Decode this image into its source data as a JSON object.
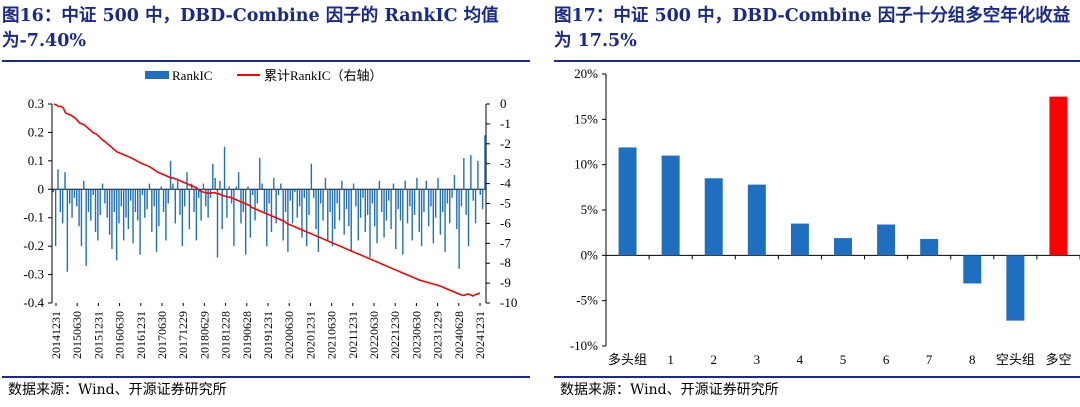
{
  "colors": {
    "title": "#1a2a8a",
    "bar_blue": "#1f6fc0",
    "line_red": "#ff0000",
    "bar_red": "#ff0000"
  },
  "left": {
    "title": "图16：中证 500 中，DBD-Combine 因子的 RankIC 均值为-7.40%",
    "source": "数据来源：Wind、开源证券研究所"
  },
  "right": {
    "title": "图17：中证 500 中，DBD-Combine 因子十分组多空年化收益为 17.5%",
    "source": "数据来源：Wind、开源证券研究所"
  },
  "chart_data": [
    {
      "type": "bar+line",
      "title": "中证 500 中，DBD-Combine 因子的 RankIC 均值为-7.40%",
      "legend": [
        "RankIC",
        "累计RankIC（右轴）"
      ],
      "legend_position": "top",
      "ylim_left": [
        -0.4,
        0.3
      ],
      "yticks_left": [
        "0.3",
        "0.2",
        "0.1",
        "0",
        "-0.1",
        "-0.2",
        "-0.3",
        "-0.4"
      ],
      "ylim_right": [
        -10,
        0
      ],
      "yticks_right": [
        "0",
        "-1",
        "-2",
        "-3",
        "-4",
        "-5",
        "-6",
        "-7",
        "-8",
        "-9",
        "-10"
      ],
      "x_tick_labels": [
        "20141231",
        "20150630",
        "20151231",
        "20160630",
        "20161231",
        "20170630",
        "20171229",
        "20180629",
        "20181228",
        "20190628",
        "20191231",
        "20200630",
        "20201231",
        "20210630",
        "20211231",
        "20220630",
        "20221230",
        "20230630",
        "20231229",
        "20240628",
        "20241231"
      ],
      "series": [
        {
          "name": "RankIC",
          "kind": "bar",
          "values": [
            -0.01,
            -0.2,
            0.07,
            -0.08,
            -0.12,
            0.06,
            -0.29,
            -0.05,
            -0.1,
            -0.03,
            -0.06,
            -0.13,
            -0.2,
            0.03,
            -0.27,
            -0.08,
            -0.11,
            -0.02,
            -0.15,
            -0.18,
            -0.09,
            0.02,
            -0.05,
            -0.1,
            -0.16,
            -0.21,
            -0.08,
            -0.25,
            -0.12,
            -0.06,
            -0.18,
            -0.1,
            -0.14,
            -0.04,
            -0.19,
            -0.08,
            -0.11,
            -0.23,
            -0.02,
            -0.1,
            -0.07,
            0.02,
            -0.15,
            -0.06,
            -0.22,
            -0.13,
            0.01,
            -0.08,
            -0.18,
            -0.05,
            0.1,
            0.02,
            -0.12,
            0.03,
            -0.09,
            -0.2,
            -0.06,
            0.06,
            -0.14,
            0.02,
            -0.08,
            -0.18,
            -0.03,
            -0.11,
            0.02,
            -0.06,
            -0.1,
            -0.03,
            0.09,
            0.04,
            -0.24,
            0.03,
            -0.14,
            0.15,
            -0.1,
            0.01,
            -0.05,
            -0.2,
            0.01,
            0.06,
            -0.12,
            -0.08,
            -0.23,
            0.01,
            -0.17,
            -0.02,
            -0.11,
            -0.05,
            0.11,
            0.02,
            -0.08,
            -0.2,
            -0.05,
            -0.15,
            0.04,
            -0.12,
            -0.02,
            0.02,
            -0.18,
            -0.08,
            -0.22,
            -0.04,
            -0.12,
            -0.01,
            -0.1,
            -0.06,
            -0.17,
            -0.03,
            -0.2,
            -0.09,
            0.09,
            -0.03,
            -0.14,
            -0.22,
            -0.05,
            -0.11,
            0.04,
            -0.18,
            -0.08,
            -0.2,
            -0.14,
            -0.05,
            -0.11,
            0.03,
            -0.16,
            -0.07,
            -0.13,
            -0.22,
            0.02,
            -0.06,
            -0.18,
            -0.1,
            -0.03,
            -0.15,
            -0.09,
            -0.24,
            -0.05,
            -0.13,
            -0.19,
            0.03,
            -0.08,
            -0.17,
            -0.11,
            -0.04,
            -0.14,
            0.02,
            -0.21,
            -0.07,
            -0.11,
            -0.23,
            0.03,
            -0.12,
            -0.06,
            -0.18,
            -0.09,
            0.04,
            -0.15,
            -0.2,
            -0.08,
            0.03,
            -0.13,
            -0.06,
            -0.19,
            -0.1,
            0.04,
            -0.16,
            -0.08,
            -0.22,
            -0.05,
            -0.12,
            -0.03,
            0.05,
            -0.14,
            -0.28,
            -0.06,
            0.11,
            -0.09,
            -0.2,
            0.12,
            -0.04,
            -0.12,
            0.1,
            -0.02,
            -0.07,
            0.19
          ]
        },
        {
          "name": "累计RankIC（右轴）",
          "kind": "line",
          "axis": "right",
          "values": [
            0,
            -0.05,
            -0.12,
            -0.12,
            -0.2,
            -0.45,
            -0.5,
            -0.55,
            -0.62,
            -0.7,
            -0.82,
            -0.95,
            -1.0,
            -1.05,
            -1.15,
            -1.25,
            -1.35,
            -1.45,
            -1.5,
            -1.6,
            -1.72,
            -1.82,
            -1.9,
            -2.0,
            -2.1,
            -2.2,
            -2.3,
            -2.4,
            -2.45,
            -2.5,
            -2.55,
            -2.6,
            -2.65,
            -2.7,
            -2.76,
            -2.82,
            -2.88,
            -2.95,
            -3.0,
            -3.05,
            -3.1,
            -3.15,
            -3.22,
            -3.3,
            -3.38,
            -3.45,
            -3.5,
            -3.55,
            -3.6,
            -3.65,
            -3.7,
            -3.72,
            -3.76,
            -3.8,
            -3.85,
            -3.9,
            -3.95,
            -4.0,
            -4.05,
            -4.1,
            -4.15,
            -4.2,
            -4.3,
            -4.38,
            -4.42,
            -4.45,
            -4.48,
            -4.48,
            -4.46,
            -4.45,
            -4.5,
            -4.52,
            -4.58,
            -4.62,
            -4.65,
            -4.68,
            -4.7,
            -4.75,
            -4.8,
            -4.85,
            -4.9,
            -4.95,
            -5.0,
            -5.05,
            -5.1,
            -5.2,
            -5.25,
            -5.3,
            -5.35,
            -5.4,
            -5.45,
            -5.5,
            -5.55,
            -5.6,
            -5.65,
            -5.7,
            -5.75,
            -5.8,
            -5.85,
            -5.9,
            -6.0,
            -6.05,
            -6.1,
            -6.15,
            -6.2,
            -6.25,
            -6.3,
            -6.35,
            -6.4,
            -6.45,
            -6.5,
            -6.55,
            -6.6,
            -6.65,
            -6.7,
            -6.75,
            -6.8,
            -6.85,
            -6.9,
            -6.95,
            -7.0,
            -7.05,
            -7.1,
            -7.15,
            -7.2,
            -7.25,
            -7.3,
            -7.35,
            -7.4,
            -7.45,
            -7.5,
            -7.55,
            -7.6,
            -7.65,
            -7.7,
            -7.75,
            -7.8,
            -7.85,
            -7.9,
            -7.95,
            -8.0,
            -8.05,
            -8.1,
            -8.15,
            -8.2,
            -8.25,
            -8.3,
            -8.35,
            -8.4,
            -8.45,
            -8.5,
            -8.55,
            -8.6,
            -8.65,
            -8.7,
            -8.75,
            -8.8,
            -8.85,
            -8.88,
            -8.92,
            -8.95,
            -8.98,
            -9.02,
            -9.05,
            -9.08,
            -9.12,
            -9.15,
            -9.2,
            -9.25,
            -9.3,
            -9.35,
            -9.4,
            -9.45,
            -9.5,
            -9.55,
            -9.6,
            -9.62,
            -9.58,
            -9.55,
            -9.6,
            -9.65,
            -9.58,
            -9.55,
            -9.5
          ]
        }
      ]
    },
    {
      "type": "bar",
      "title": "中证 500 中，DBD-Combine 因子十分组多空年化收益为 17.5%",
      "categories": [
        "多头组",
        "1",
        "2",
        "3",
        "4",
        "5",
        "6",
        "7",
        "8",
        "空头组",
        "多空"
      ],
      "values": [
        11.9,
        11.0,
        8.5,
        7.8,
        3.5,
        1.9,
        3.4,
        1.8,
        -3.1,
        -7.2,
        17.5
      ],
      "ylim": [
        -10,
        20
      ],
      "yticks": [
        "20%",
        "15%",
        "10%",
        "5%",
        "0%",
        "-5%",
        "-10%"
      ],
      "highlight": {
        "category": "多空",
        "color": "#ff0000"
      }
    }
  ]
}
